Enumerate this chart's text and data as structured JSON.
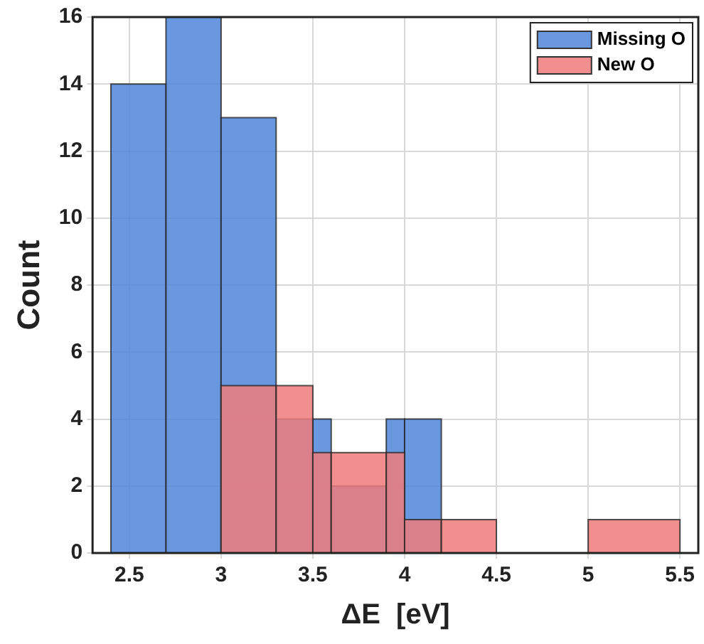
{
  "chart_data": {
    "type": "histogram",
    "xlabel": "ΔE  [eV]",
    "ylabel": "Count",
    "bins": [
      2.4,
      2.7,
      3.0,
      3.3,
      3.5,
      3.6,
      3.9,
      4.0,
      4.2,
      4.5,
      5.0,
      5.5
    ],
    "series": [
      {
        "name": "Missing O",
        "color": "#4f86dc",
        "values": [
          14,
          16,
          13,
          4,
          4,
          2,
          4,
          4,
          null,
          null,
          null
        ]
      },
      {
        "name": "New O",
        "color": "#ee7b7b",
        "values": [
          null,
          null,
          5,
          5,
          3,
          3,
          3,
          1,
          1,
          0,
          1
        ]
      }
    ],
    "xlim": [
      2.3,
      5.6
    ],
    "xticks": [
      2.5,
      3,
      3.5,
      4,
      4.5,
      5,
      5.5
    ],
    "ylim": [
      0,
      16
    ],
    "yticks": [
      0,
      2,
      4,
      6,
      8,
      10,
      12,
      14,
      16
    ],
    "grid": true,
    "legend": "top right"
  }
}
